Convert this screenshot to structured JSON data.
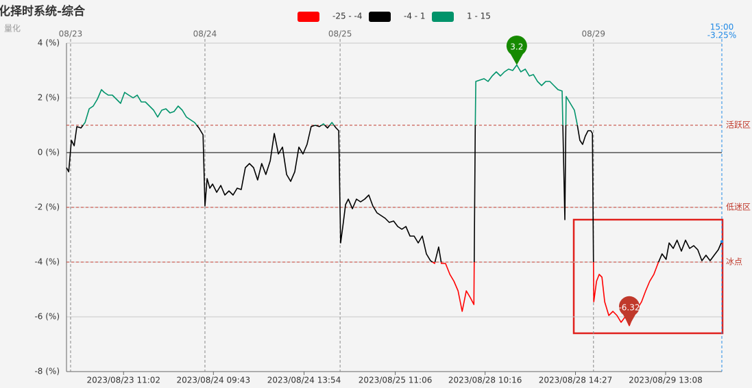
{
  "chart_data": {
    "type": "line",
    "title": "化择时系统-综合",
    "subtitle": "量化",
    "color_ranges": [
      {
        "label": "-25 - -4",
        "from": -25,
        "to": -4,
        "color": "#ff0000"
      },
      {
        "label": "-4 - 1",
        "from": -4,
        "to": 1,
        "color": "#000000"
      },
      {
        "label": "1 - 15",
        "from": 1,
        "to": 15,
        "color": "#00936a"
      }
    ],
    "x": [
      0,
      0.8,
      1.8,
      2.8,
      3.8,
      5.3,
      6.8,
      8.3,
      9.8,
      11.3,
      12.8,
      13.8,
      15.3,
      16.8,
      18.3,
      19.8,
      21.3,
      22.8,
      24.4,
      25.9,
      27.4,
      28.9,
      30.4,
      31.9,
      33.4,
      34.9,
      36.4,
      37.9,
      39.4,
      40.9,
      42.4,
      43.9,
      45.4,
      46.9,
      48.5,
      50.0,
      50.7,
      51.5,
      52.5,
      53.5,
      55,
      56.5,
      58,
      59.5,
      61,
      62.5,
      64,
      65.5,
      67,
      68.5,
      70,
      71.5,
      73,
      74.6,
      76.1,
      77.6,
      79.1,
      80.6,
      82.1,
      83.6,
      85.1,
      86.6,
      88.1,
      89.6,
      91.1,
      92.6,
      94.1,
      95.6,
      97.2,
      98.7,
      99.7,
      100.4,
      101.2,
      102.2,
      103.2,
      104.7,
      106.2,
      107.7,
      109.2,
      110.7,
      112.2,
      113.7,
      115.2,
      116.7,
      118.2,
      119.8,
      121.3,
      122.8,
      124.3,
      125.8,
      127.3,
      128.8,
      130.3,
      131.8,
      133.3,
      134.8,
      136.3,
      137.3,
      138.8,
      140.4,
      141.9,
      143.4,
      144.9,
      146.4,
      147.9,
      149.2,
      149.7,
      149.9,
      151.4,
      152.9,
      154.4,
      155.9,
      157.4,
      158.9,
      160.4,
      161.9,
      163.4,
      164.9,
      166.4,
      168,
      169.5,
      171,
      172.5,
      174,
      175.5,
      177,
      178.5,
      180,
      181.5,
      182.5,
      183,
      184.5,
      186,
      187,
      188,
      189,
      190,
      191,
      192,
      192.6,
      193.1,
      194.1,
      195.1,
      196.1,
      197.1,
      198.6,
      200.1,
      201.6,
      203.1,
      204.6,
      206.1,
      207.6,
      209.1,
      210.6,
      212.1,
      213.6,
      215.1,
      216.6,
      218.1,
      219.6,
      220.7,
      222.2,
      223.6,
      225.2,
      226.7,
      228.2,
      229.7,
      231.2,
      232.7,
      234.2,
      235.7,
      237.2,
      238.7,
      240
    ],
    "values": [
      -0.55,
      -0.7,
      0.45,
      0.25,
      0.95,
      0.9,
      1.1,
      1.6,
      1.7,
      1.95,
      2.3,
      2.2,
      2.1,
      2.1,
      1.95,
      1.8,
      2.2,
      2.1,
      2.0,
      2.1,
      1.85,
      1.85,
      1.7,
      1.55,
      1.3,
      1.55,
      1.6,
      1.45,
      1.5,
      1.7,
      1.55,
      1.3,
      1.2,
      1.1,
      0.9,
      0.65,
      -1.95,
      -0.95,
      -1.3,
      -1.15,
      -1.45,
      -1.2,
      -1.55,
      -1.4,
      -1.55,
      -1.3,
      -1.35,
      -0.55,
      -0.4,
      -0.55,
      -1.0,
      -0.4,
      -0.8,
      -0.3,
      0.7,
      -0.05,
      0.2,
      -0.8,
      -1.05,
      -0.7,
      0.2,
      -0.05,
      0.3,
      0.95,
      1.0,
      0.95,
      1.05,
      0.9,
      1.1,
      0.9,
      0.8,
      -3.3,
      -2.7,
      -1.9,
      -1.7,
      -2.05,
      -1.7,
      -1.8,
      -1.7,
      -1.55,
      -1.95,
      -2.2,
      -2.3,
      -2.4,
      -2.55,
      -2.5,
      -2.7,
      -2.8,
      -2.7,
      -3.05,
      -3.05,
      -3.3,
      -3.05,
      -3.7,
      -3.95,
      -4.05,
      -3.45,
      -4.05,
      -4.05,
      -4.45,
      -4.7,
      -5.05,
      -5.8,
      -5.05,
      -5.3,
      -5.55,
      0.95,
      2.6,
      2.65,
      2.7,
      2.6,
      2.8,
      2.95,
      2.8,
      2.95,
      3.05,
      3.0,
      3.2,
      2.95,
      3.05,
      2.8,
      2.85,
      2.6,
      2.45,
      2.6,
      2.6,
      2.45,
      2.3,
      2.25,
      -2.45,
      2.05,
      1.8,
      1.55,
      1.05,
      0.45,
      0.3,
      0.6,
      0.8,
      0.8,
      0.7,
      -5.45,
      -4.7,
      -4.45,
      -4.55,
      -5.45,
      -5.95,
      -5.8,
      -5.95,
      -6.2,
      -6.0,
      -6.32,
      -5.95,
      -5.7,
      -5.45,
      -5.05,
      -4.7,
      -4.45,
      -4.05,
      -3.7,
      -3.9,
      -3.3,
      -3.5,
      -3.2,
      -3.6,
      -3.2,
      -3.5,
      -3.4,
      -3.55,
      -3.95,
      -3.75,
      -3.95,
      -3.75,
      -3.55,
      -3.25
    ],
    "xlim": [
      0,
      240
    ],
    "ylim": [
      -8,
      4
    ],
    "yticks": [
      {
        "value": 4,
        "label": "4 (%)"
      },
      {
        "value": 2,
        "label": "2 (%)"
      },
      {
        "value": 0,
        "label": "0 (%)"
      },
      {
        "value": -2,
        "label": "-2 (%)"
      },
      {
        "value": -4,
        "label": "-4 (%)"
      },
      {
        "value": -6,
        "label": "-6 (%)"
      },
      {
        "value": -8,
        "label": "-8 (%)"
      }
    ],
    "xticks": [
      {
        "value": 20.9,
        "label": "2023/08/23 11:02"
      },
      {
        "value": 53.8,
        "label": "2023/08/24 09:43"
      },
      {
        "value": 87,
        "label": "2023/08/24 13:54"
      },
      {
        "value": 120.4,
        "label": "2023/08/25 11:06"
      },
      {
        "value": 153.3,
        "label": "2023/08/28 10:16"
      },
      {
        "value": 186.4,
        "label": "2023/08/28 14:27"
      },
      {
        "value": 219.4,
        "label": "2023/08/29 13:08"
      }
    ],
    "day_ticks": [
      {
        "value": 1.5,
        "label": "08/23"
      },
      {
        "value": 50.7,
        "label": "08/24"
      },
      {
        "value": 100.2,
        "label": "08/25"
      },
      {
        "value": 193,
        "label": "08/29"
      }
    ],
    "ref_lines": [
      {
        "value": 1,
        "label": "活跃区",
        "color": "#c0392b"
      },
      {
        "value": -2,
        "label": "低迷区",
        "color": "#c0392b"
      },
      {
        "value": -4,
        "label": "冰点",
        "color": "#c0392b"
      }
    ],
    "markers": [
      {
        "x": 164.9,
        "value": 3.2,
        "color": "#168a00"
      },
      {
        "x": 206.1,
        "value": -6.32,
        "color": "#c0392b"
      }
    ],
    "last": {
      "x": 240,
      "value": -3.25,
      "time": "15:00",
      "value_label": "-3.25%",
      "color": "#1e88e5"
    }
  }
}
